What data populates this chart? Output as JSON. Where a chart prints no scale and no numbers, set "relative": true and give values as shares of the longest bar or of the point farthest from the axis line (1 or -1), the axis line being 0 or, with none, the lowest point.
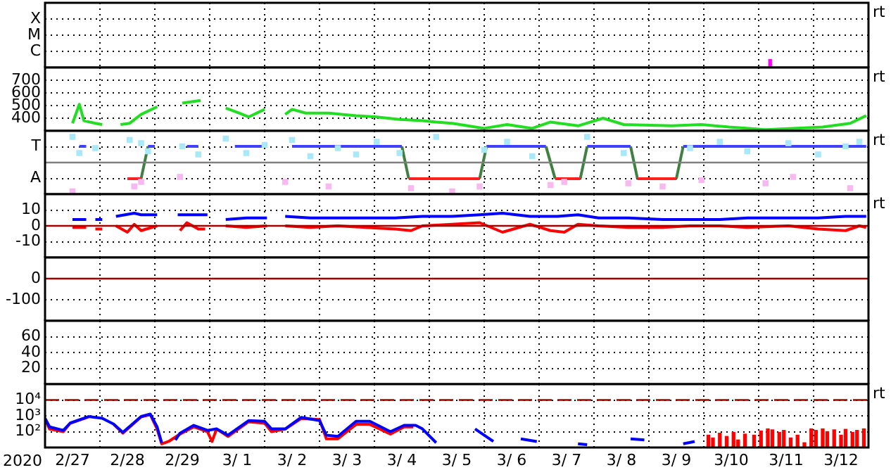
{
  "chart_data": [
    {
      "type": "bar",
      "relative": true,
      "y_categories": [
        "X",
        "M",
        "C"
      ],
      "xlim": [
        "2020-02-27T00:00",
        "2020-03-13T00:00"
      ],
      "xticks": [
        {
          "value": "2020-02-28T00:00",
          "label": null
        },
        {
          "value": "2020-02-29T00:00",
          "label": null
        },
        {
          "value": "2020-03-01T00:00",
          "label": null
        },
        {
          "value": "2020-03-02T00:00",
          "label": null
        },
        {
          "value": "2020-03-03T00:00",
          "label": null
        },
        {
          "value": "2020-03-04T00:00",
          "label": null
        },
        {
          "value": "2020-03-05T00:00",
          "label": null
        },
        {
          "value": "2020-03-06T00:00",
          "label": null
        },
        {
          "value": "2020-03-07T00:00",
          "label": null
        },
        {
          "value": "2020-03-08T00:00",
          "label": null
        },
        {
          "value": "2020-03-09T00:00",
          "label": null
        },
        {
          "value": "2020-03-10T00:00",
          "label": null
        },
        {
          "value": "2020-03-11T00:00",
          "label": null
        },
        {
          "value": "2020-03-12T00:00",
          "label": null
        }
      ],
      "grid": true,
      "tick_labels": "y",
      "annotations": [
        "rt"
      ],
      "series": [
        {
          "color": "#ff00ff",
          "x": [
            "2020-03-11T05:00"
          ],
          "values": [
            1
          ]
        }
      ]
    },
    {
      "type": "line",
      "ylim": [
        300,
        800
      ],
      "yticks": [
        400,
        500,
        600,
        700
      ],
      "xlim": [
        "2020-02-27T00:00",
        "2020-03-13T00:00"
      ],
      "xticks": [
        {
          "value": "2020-02-28T00:00",
          "label": null
        },
        {
          "value": "2020-02-29T00:00",
          "label": null
        },
        {
          "value": "2020-03-01T00:00",
          "label": null
        },
        {
          "value": "2020-03-02T00:00",
          "label": null
        },
        {
          "value": "2020-03-03T00:00",
          "label": null
        },
        {
          "value": "2020-03-04T00:00",
          "label": null
        },
        {
          "value": "2020-03-05T00:00",
          "label": null
        },
        {
          "value": "2020-03-06T00:00",
          "label": null
        },
        {
          "value": "2020-03-07T00:00",
          "label": null
        },
        {
          "value": "2020-03-08T00:00",
          "label": null
        },
        {
          "value": "2020-03-09T00:00",
          "label": null
        },
        {
          "value": "2020-03-10T00:00",
          "label": null
        },
        {
          "value": "2020-03-11T00:00",
          "label": null
        },
        {
          "value": "2020-03-12T00:00",
          "label": null
        }
      ],
      "grid": true,
      "tick_labels": "y",
      "annotations": [
        "rt"
      ],
      "series": [
        {
          "color": "#22dd22",
          "x": [
            "2020-02-27T12:00",
            "2020-02-27T15:00",
            "2020-02-27T17:00",
            "2020-02-27T22:00",
            "2020-02-28T01:00",
            "2020-02-28T05:00",
            "2020-02-28T09:00",
            "2020-02-28T13:00",
            "2020-02-28T18:00",
            "2020-02-29T01:00",
            "2020-02-29T06:00",
            "2020-02-29T12:00",
            "2020-02-29T20:00",
            "2020-03-01T02:00",
            "2020-03-01T07:00",
            "2020-03-01T13:00",
            "2020-03-01T17:00",
            "2020-03-02T00:00",
            "2020-03-02T04:00",
            "2020-03-02T09:00",
            "2020-03-02T12:00",
            "2020-03-02T18:00",
            "2020-03-03T04:00",
            "2020-03-03T16:00",
            "2020-03-04T01:00",
            "2020-03-04T11:00",
            "2020-03-04T21:00",
            "2020-03-05T03:00",
            "2020-03-05T10:00",
            "2020-03-06T00:00",
            "2020-03-06T10:00",
            "2020-03-06T21:00",
            "2020-03-07T05:00",
            "2020-03-07T17:00",
            "2020-03-08T04:00",
            "2020-03-08T13:00",
            "2020-03-09T10:00",
            "2020-03-09T23:00",
            "2020-03-10T11:00",
            "2020-03-11T03:00",
            "2020-03-11T15:00",
            "2020-03-12T04:00",
            "2020-03-12T16:00",
            "2020-03-12T23:00"
          ],
          "values": [
            360,
            510,
            380,
            360,
            350,
            null,
            350,
            360,
            430,
            490,
            null,
            520,
            540,
            null,
            480,
            440,
            410,
            470,
            null,
            430,
            470,
            440,
            440,
            420,
            410,
            390,
            380,
            370,
            360,
            320,
            350,
            320,
            370,
            340,
            400,
            350,
            340,
            350,
            330,
            310,
            320,
            330,
            360,
            420
          ]
        }
      ]
    },
    {
      "type": "line",
      "relative": true,
      "y_categories": [
        "T",
        "A"
      ],
      "xlim": [
        "2020-02-27T00:00",
        "2020-03-13T00:00"
      ],
      "xticks": [
        {
          "value": "2020-02-28T00:00",
          "label": null
        },
        {
          "value": "2020-02-29T00:00",
          "label": null
        },
        {
          "value": "2020-03-01T00:00",
          "label": null
        },
        {
          "value": "2020-03-02T00:00",
          "label": null
        },
        {
          "value": "2020-03-03T00:00",
          "label": null
        },
        {
          "value": "2020-03-04T00:00",
          "label": null
        },
        {
          "value": "2020-03-05T00:00",
          "label": null
        },
        {
          "value": "2020-03-06T00:00",
          "label": null
        },
        {
          "value": "2020-03-07T00:00",
          "label": null
        },
        {
          "value": "2020-03-08T00:00",
          "label": null
        },
        {
          "value": "2020-03-09T00:00",
          "label": null
        },
        {
          "value": "2020-03-10T00:00",
          "label": null
        },
        {
          "value": "2020-03-11T00:00",
          "label": null
        },
        {
          "value": "2020-03-12T00:00",
          "label": null
        }
      ],
      "grid": true,
      "tick_labels": "y",
      "annotations": [
        "rt"
      ],
      "ref_lines": [
        {
          "axis": "y",
          "value": 0,
          "color": "#808080"
        }
      ],
      "series": [
        {
          "type": "scatter",
          "marker": "square",
          "color": "#a8e8f8",
          "x": [
            "2020-02-27T12:00",
            "2020-02-27T15:00",
            "2020-02-27T22:00",
            "2020-02-28T13:00",
            "2020-02-28T18:00",
            "2020-02-28T21:00",
            "2020-02-29T12:00",
            "2020-02-29T19:00",
            "2020-03-01T07:00",
            "2020-03-01T16:00",
            "2020-03-02T00:00",
            "2020-03-02T12:00",
            "2020-03-02T20:00",
            "2020-03-03T08:00",
            "2020-03-03T16:00",
            "2020-03-04T01:00",
            "2020-03-04T11:00",
            "2020-03-05T03:00",
            "2020-03-06T00:00",
            "2020-03-06T10:00",
            "2020-03-06T21:00",
            "2020-03-07T21:00",
            "2020-03-08T13:00",
            "2020-03-09T18:00",
            "2020-03-10T07:00",
            "2020-03-10T19:00",
            "2020-03-11T13:00",
            "2020-03-12T02:00",
            "2020-03-12T14:00",
            "2020-03-12T20:00"
          ],
          "values": [
            0.89,
            0.33,
            0.5,
            0.78,
            0.67,
            0.39,
            0.56,
            0.28,
            0.83,
            0.33,
            0.61,
            0.78,
            0.22,
            0.5,
            0.28,
            0.72,
            0.33,
            0.89,
            0.44,
            0.72,
            0.22,
            0.89,
            0.33,
            0.5,
            0.72,
            0.39,
            0.67,
            0.28,
            0.56,
            0.72
          ]
        },
        {
          "type": "scatter",
          "marker": "square",
          "color": "#f8b8f0",
          "x": [
            "2020-02-27T12:00",
            "2020-02-28T15:00",
            "2020-02-28T18:00",
            "2020-02-29T11:00",
            "2020-03-02T09:00",
            "2020-03-03T04:00",
            "2020-03-04T16:00",
            "2020-03-05T10:00",
            "2020-03-05T22:00",
            "2020-03-07T05:00",
            "2020-03-07T11:00",
            "2020-03-08T15:00",
            "2020-03-09T06:00",
            "2020-03-09T23:00",
            "2020-03-11T03:00",
            "2020-03-11T15:00",
            "2020-03-12T16:00"
          ],
          "values": [
            -1,
            -0.83,
            -0.67,
            -0.5,
            -0.67,
            -0.83,
            -0.89,
            -1,
            -0.83,
            -0.78,
            -0.67,
            -0.72,
            -0.83,
            -0.61,
            -0.72,
            -0.5,
            -0.89
          ]
        },
        {
          "color": "#4040ff",
          "x": [
            "2020-02-27T15:00",
            "2020-02-27T18:00",
            "2020-02-28T00:00",
            "2020-02-28T21:00",
            "2020-02-29T00:00",
            "2020-02-29T06:00",
            "2020-02-29T14:00",
            "2020-02-29T19:00",
            "2020-03-01T02:00",
            "2020-03-01T11:00",
            "2020-03-02T00:00",
            "2020-03-02T06:00",
            "2020-03-02T12:00",
            "2020-03-04T12:00",
            "2020-03-05T00:00",
            "2020-03-06T01:00",
            "2020-03-07T03:00",
            "2020-03-07T12:00",
            "2020-03-07T21:00",
            "2020-03-08T16:00",
            "2020-03-09T00:00",
            "2020-03-09T15:00",
            "2020-03-12T23:00"
          ],
          "values": [
            0.56,
            0.56,
            null,
            0.56,
            0.56,
            null,
            0.56,
            0.56,
            null,
            0.56,
            0.56,
            null,
            0.56,
            0.56,
            null,
            0.56,
            0.56,
            null,
            0.56,
            0.56,
            null,
            0.56,
            0.56
          ]
        },
        {
          "color": "#ff2020",
          "x": [
            "2020-02-28T12:00",
            "2020-02-28T18:00",
            "2020-03-01T00:00",
            "2020-03-04T15:00",
            "2020-03-05T22:00",
            "2020-03-06T12:00",
            "2020-03-07T07:00",
            "2020-03-07T18:00",
            "2020-03-08T00:00",
            "2020-03-08T19:00",
            "2020-03-09T12:00"
          ],
          "values": [
            -0.56,
            -0.56,
            null,
            -0.56,
            -0.56,
            null,
            -0.56,
            -0.56,
            null,
            -0.56,
            -0.56
          ]
        },
        {
          "color": "#408040",
          "x": [
            "2020-02-28T18:00",
            "2020-02-28T21:00",
            "2020-03-01T00:00",
            "2020-03-04T12:00",
            "2020-03-04T15:00",
            "2020-03-05T00:00",
            "2020-03-05T22:00",
            "2020-03-06T01:00",
            "2020-03-06T12:00",
            "2020-03-07T03:00",
            "2020-03-07T07:00",
            "2020-03-07T12:00",
            "2020-03-07T18:00",
            "2020-03-07T21:00",
            "2020-03-08T00:00",
            "2020-03-08T16:00",
            "2020-03-08T19:00",
            "2020-03-09T00:00",
            "2020-03-09T12:00",
            "2020-03-09T15:00"
          ],
          "values": [
            -0.56,
            0.56,
            null,
            0.56,
            -0.56,
            null,
            -0.56,
            0.56,
            null,
            0.56,
            -0.56,
            null,
            -0.56,
            0.56,
            null,
            0.56,
            -0.56,
            null,
            -0.56,
            0.56
          ]
        }
      ]
    },
    {
      "type": "line",
      "ylim": [
        -20,
        20
      ],
      "yticks": [
        -10,
        0,
        10
      ],
      "xlim": [
        "2020-02-27T00:00",
        "2020-03-13T00:00"
      ],
      "xticks": [
        {
          "value": "2020-02-28T00:00",
          "label": null
        },
        {
          "value": "2020-02-29T00:00",
          "label": null
        },
        {
          "value": "2020-03-01T00:00",
          "label": null
        },
        {
          "value": "2020-03-02T00:00",
          "label": null
        },
        {
          "value": "2020-03-03T00:00",
          "label": null
        },
        {
          "value": "2020-03-04T00:00",
          "label": null
        },
        {
          "value": "2020-03-05T00:00",
          "label": null
        },
        {
          "value": "2020-03-06T00:00",
          "label": null
        },
        {
          "value": "2020-03-07T00:00",
          "label": null
        },
        {
          "value": "2020-03-08T00:00",
          "label": null
        },
        {
          "value": "2020-03-09T00:00",
          "label": null
        },
        {
          "value": "2020-03-10T00:00",
          "label": null
        },
        {
          "value": "2020-03-11T00:00",
          "label": null
        },
        {
          "value": "2020-03-12T00:00",
          "label": null
        }
      ],
      "grid": true,
      "tick_labels": "y",
      "annotations": [
        "rt"
      ],
      "ref_lines": [
        {
          "axis": "y",
          "value": 0,
          "color": "#a00000"
        }
      ],
      "series": [
        {
          "color": "#0000ff",
          "x": [
            "2020-02-27T12:00",
            "2020-02-27T18:00",
            "2020-02-27T20:00",
            "2020-02-27T22:00",
            "2020-02-28T01:00",
            "2020-02-28T04:00",
            "2020-02-28T07:00",
            "2020-02-28T15:00",
            "2020-02-28T18:00",
            "2020-02-29T01:00",
            "2020-02-29T06:00",
            "2020-02-29T10:00",
            "2020-02-29T16:00",
            "2020-02-29T23:00",
            "2020-03-01T02:00",
            "2020-03-01T07:00",
            "2020-03-01T16:00",
            "2020-03-02T01:00",
            "2020-03-02T05:00",
            "2020-03-02T09:00",
            "2020-03-02T20:00",
            "2020-03-03T08:00",
            "2020-03-03T20:00",
            "2020-03-04T09:00",
            "2020-03-04T21:00",
            "2020-03-05T10:00",
            "2020-03-05T22:00",
            "2020-03-06T08:00",
            "2020-03-06T20:00",
            "2020-03-07T08:00",
            "2020-03-07T17:00",
            "2020-03-08T02:00",
            "2020-03-08T15:00",
            "2020-03-09T06:00",
            "2020-03-09T18:00",
            "2020-03-10T07:00",
            "2020-03-10T19:00",
            "2020-03-11T13:00",
            "2020-03-12T02:00",
            "2020-03-12T14:00",
            "2020-03-12T23:00"
          ],
          "values": [
            4,
            4,
            null,
            4,
            4,
            null,
            6,
            8,
            7,
            7,
            null,
            7,
            7,
            7,
            null,
            4,
            5,
            5,
            null,
            6,
            5,
            5,
            5,
            5,
            6,
            6,
            7,
            8,
            6,
            6,
            7,
            5,
            5,
            4,
            4,
            4,
            5,
            5,
            5,
            6,
            6
          ]
        },
        {
          "color": "#ff0000",
          "x": [
            "2020-02-27T12:00",
            "2020-02-27T18:00",
            "2020-02-27T20:00",
            "2020-02-27T22:00",
            "2020-02-28T01:00",
            "2020-02-28T04:00",
            "2020-02-28T07:00",
            "2020-02-28T12:00",
            "2020-02-28T15:00",
            "2020-02-28T18:00",
            "2020-02-29T01:00",
            "2020-02-29T06:00",
            "2020-02-29T11:00",
            "2020-02-29T14:00",
            "2020-02-29T19:00",
            "2020-02-29T22:00",
            "2020-03-01T02:00",
            "2020-03-01T07:00",
            "2020-03-01T16:00",
            "2020-03-02T01:00",
            "2020-03-02T05:00",
            "2020-03-02T09:00",
            "2020-03-02T20:00",
            "2020-03-03T08:00",
            "2020-03-03T20:00",
            "2020-03-04T09:00",
            "2020-03-04T16:00",
            "2020-03-04T21:00",
            "2020-03-05T10:00",
            "2020-03-05T22:00",
            "2020-03-06T08:00",
            "2020-03-06T20:00",
            "2020-03-07T05:00",
            "2020-03-07T11:00",
            "2020-03-07T17:00",
            "2020-03-08T02:00",
            "2020-03-08T15:00",
            "2020-03-09T06:00",
            "2020-03-09T18:00",
            "2020-03-10T07:00",
            "2020-03-10T19:00",
            "2020-03-11T13:00",
            "2020-03-12T02:00",
            "2020-03-12T14:00",
            "2020-03-12T20:00",
            "2020-03-12T23:00"
          ],
          "values": [
            -1,
            -1,
            null,
            -2,
            -2,
            null,
            0,
            -4,
            1,
            -3,
            0,
            null,
            -3,
            2,
            -2,
            -2,
            null,
            0,
            -1,
            0,
            null,
            0,
            -1,
            0,
            -1,
            -2,
            -3,
            0,
            1,
            2,
            -4,
            1,
            -3,
            -4,
            1,
            0,
            -1,
            -1,
            0,
            0,
            -1,
            0,
            -2,
            -3,
            0,
            -1
          ]
        }
      ]
    },
    {
      "type": "line",
      "ylim": [
        -200,
        100
      ],
      "yticks": [
        -100,
        0
      ],
      "xlim": [
        "2020-02-27T00:00",
        "2020-03-13T00:00"
      ],
      "xticks": [
        {
          "value": "2020-02-28T00:00",
          "label": null
        },
        {
          "value": "2020-02-29T00:00",
          "label": null
        },
        {
          "value": "2020-03-01T00:00",
          "label": null
        },
        {
          "value": "2020-03-02T00:00",
          "label": null
        },
        {
          "value": "2020-03-03T00:00",
          "label": null
        },
        {
          "value": "2020-03-04T00:00",
          "label": null
        },
        {
          "value": "2020-03-05T00:00",
          "label": null
        },
        {
          "value": "2020-03-06T00:00",
          "label": null
        },
        {
          "value": "2020-03-07T00:00",
          "label": null
        },
        {
          "value": "2020-03-08T00:00",
          "label": null
        },
        {
          "value": "2020-03-09T00:00",
          "label": null
        },
        {
          "value": "2020-03-10T00:00",
          "label": null
        },
        {
          "value": "2020-03-11T00:00",
          "label": null
        },
        {
          "value": "2020-03-12T00:00",
          "label": null
        }
      ],
      "grid": true,
      "tick_labels": "y",
      "ref_lines": [
        {
          "axis": "y",
          "value": 0,
          "color": "#a00000"
        }
      ]
    },
    {
      "type": "line",
      "ylim": [
        0,
        80
      ],
      "yticks": [
        20,
        40,
        60
      ],
      "xlim": [
        "2020-02-27T00:00",
        "2020-03-13T00:00"
      ],
      "xticks": [
        {
          "value": "2020-02-28T00:00",
          "label": null
        },
        {
          "value": "2020-02-29T00:00",
          "label": null
        },
        {
          "value": "2020-03-01T00:00",
          "label": null
        },
        {
          "value": "2020-03-02T00:00",
          "label": null
        },
        {
          "value": "2020-03-03T00:00",
          "label": null
        },
        {
          "value": "2020-03-04T00:00",
          "label": null
        },
        {
          "value": "2020-03-05T00:00",
          "label": null
        },
        {
          "value": "2020-03-06T00:00",
          "label": null
        },
        {
          "value": "2020-03-07T00:00",
          "label": null
        },
        {
          "value": "2020-03-08T00:00",
          "label": null
        },
        {
          "value": "2020-03-09T00:00",
          "label": null
        },
        {
          "value": "2020-03-10T00:00",
          "label": null
        },
        {
          "value": "2020-03-11T00:00",
          "label": null
        },
        {
          "value": "2020-03-12T00:00",
          "label": null
        }
      ],
      "grid": true,
      "tick_labels": "y"
    },
    {
      "type": "line",
      "log": "y",
      "ylim": [
        10,
        100000
      ],
      "yticks": [
        {
          "value": 100,
          "label": "10²"
        },
        {
          "value": 1000,
          "label": "10³"
        },
        {
          "value": 10000,
          "label": "10⁴"
        }
      ],
      "xlabel": "2020",
      "xlim": [
        "2020-02-27T00:00",
        "2020-03-13T00:00"
      ],
      "xticks": [
        {
          "value": "2020-02-27T12:00",
          "label": "2/27"
        },
        {
          "value": "2020-02-28T00:00",
          "label": null
        },
        {
          "value": "2020-02-28T12:00",
          "label": "2/28"
        },
        {
          "value": "2020-02-29T00:00",
          "label": null
        },
        {
          "value": "2020-02-29T12:00",
          "label": "2/29"
        },
        {
          "value": "2020-03-01T00:00",
          "label": null
        },
        {
          "value": "2020-03-01T12:00",
          "label": "3/ 1"
        },
        {
          "value": "2020-03-02T00:00",
          "label": null
        },
        {
          "value": "2020-03-02T12:00",
          "label": "3/ 2"
        },
        {
          "value": "2020-03-03T00:00",
          "label": null
        },
        {
          "value": "2020-03-03T12:00",
          "label": "3/ 3"
        },
        {
          "value": "2020-03-04T00:00",
          "label": null
        },
        {
          "value": "2020-03-04T12:00",
          "label": "3/ 4"
        },
        {
          "value": "2020-03-05T00:00",
          "label": null
        },
        {
          "value": "2020-03-05T12:00",
          "label": "3/ 5"
        },
        {
          "value": "2020-03-06T00:00",
          "label": null
        },
        {
          "value": "2020-03-06T12:00",
          "label": "3/ 6"
        },
        {
          "value": "2020-03-07T00:00",
          "label": null
        },
        {
          "value": "2020-03-07T12:00",
          "label": "3/ 7"
        },
        {
          "value": "2020-03-08T00:00",
          "label": null
        },
        {
          "value": "2020-03-08T12:00",
          "label": "3/ 8"
        },
        {
          "value": "2020-03-09T00:00",
          "label": null
        },
        {
          "value": "2020-03-09T12:00",
          "label": "3/ 9"
        },
        {
          "value": "2020-03-10T00:00",
          "label": null
        },
        {
          "value": "2020-03-10T12:00",
          "label": "3/10"
        },
        {
          "value": "2020-03-11T00:00",
          "label": null
        },
        {
          "value": "2020-03-11T12:00",
          "label": "3/11"
        },
        {
          "value": "2020-03-12T00:00",
          "label": null
        },
        {
          "value": "2020-03-12T12:00",
          "label": "3/12"
        }
      ],
      "grid": true,
      "annotations": [
        "rt"
      ],
      "ref_lines": [
        {
          "axis": "y",
          "value": 10000,
          "color": "#a00000",
          "line_style": "dashed"
        }
      ],
      "series": [
        {
          "type": "bar",
          "color": "#ff0000",
          "x": [
            "2020-03-10T02:00",
            "2020-03-10T04:00",
            "2020-03-10T07:00",
            "2020-03-10T10:00",
            "2020-03-10T13:00",
            "2020-03-10T15:00",
            "2020-03-10T18:00",
            "2020-03-10T22:00",
            "2020-03-11T01:00",
            "2020-03-11T04:00",
            "2020-03-11T06:00",
            "2020-03-11T09:00",
            "2020-03-11T11:00",
            "2020-03-11T14:00",
            "2020-03-11T17:00",
            "2020-03-11T20:00",
            "2020-03-11T23:00",
            "2020-03-12T01:00",
            "2020-03-12T04:00",
            "2020-03-12T06:00",
            "2020-03-12T09:00",
            "2020-03-12T12:00",
            "2020-03-12T14:00",
            "2020-03-12T17:00",
            "2020-03-12T19:00",
            "2020-03-12T22:00"
          ],
          "values": [
            60,
            40,
            80,
            50,
            90,
            30,
            70,
            60,
            110,
            150,
            130,
            90,
            120,
            40,
            60,
            20,
            150,
            120,
            150,
            100,
            130,
            60,
            140,
            90,
            120,
            150
          ]
        },
        {
          "color": "#0000ff",
          "x": [
            "2020-02-27T00:00",
            "2020-02-27T02:00",
            "2020-02-27T08:00",
            "2020-02-27T11:00",
            "2020-02-27T19:00",
            "2020-02-28T01:00",
            "2020-02-28T06:00",
            "2020-02-28T10:00",
            "2020-02-28T18:00",
            "2020-02-28T22:00",
            "2020-02-29T01:00",
            "2020-02-29T03:00",
            "2020-02-29T06:00",
            "2020-02-29T09:00",
            "2020-02-29T11:00",
            "2020-02-29T17:00",
            "2020-02-29T23:00",
            "2020-03-01T03:00",
            "2020-03-01T08:00",
            "2020-03-01T17:00",
            "2020-03-02T00:00",
            "2020-03-02T03:00",
            "2020-03-02T09:00",
            "2020-03-02T16:00",
            "2020-03-03T00:00",
            "2020-03-03T03:00",
            "2020-03-03T08:00",
            "2020-03-03T16:00",
            "2020-03-03T22:00",
            "2020-03-04T07:00",
            "2020-03-04T13:00",
            "2020-03-04T18:00",
            "2020-03-04T21:00",
            "2020-03-05T03:00",
            "2020-03-05T07:00",
            "2020-03-05T10:00",
            "2020-03-05T20:00",
            "2020-03-06T04:00",
            "2020-03-06T09:00",
            "2020-03-06T11:00",
            "2020-03-06T16:00",
            "2020-03-06T23:00",
            "2020-03-07T04:00",
            "2020-03-07T11:00",
            "2020-03-07T17:00",
            "2020-03-07T21:00",
            "2020-03-08T02:00",
            "2020-03-08T12:00",
            "2020-03-08T16:00",
            "2020-03-08T22:00",
            "2020-03-09T03:00",
            "2020-03-09T12:00",
            "2020-03-09T15:00",
            "2020-03-09T20:00"
          ],
          "values": [
            700,
            200,
            120,
            350,
            900,
            700,
            300,
            90,
            900,
            1300,
            200,
            20,
            null,
            30,
            80,
            250,
            120,
            150,
            60,
            500,
            450,
            150,
            150,
            800,
            500,
            60,
            50,
            450,
            450,
            100,
            250,
            250,
            150,
            20,
            null,
            null,
            150,
            24,
            null,
            null,
            35,
            24,
            null,
            null,
            17,
            15,
            null,
            null,
            35,
            30,
            null,
            null,
            17,
            24
          ]
        },
        {
          "color": "#ff0000",
          "x": [
            "2020-02-27T00:00",
            "2020-02-27T02:00",
            "2020-02-27T08:00",
            "2020-02-27T11:00",
            "2020-02-27T19:00",
            "2020-02-28T01:00",
            "2020-02-28T06:00",
            "2020-02-28T10:00",
            "2020-02-28T18:00",
            "2020-02-28T22:00",
            "2020-02-29T01:00",
            "2020-02-29T03:00",
            "2020-02-29T06:00",
            "2020-02-29T11:00",
            "2020-02-29T17:00",
            "2020-02-29T23:00",
            "2020-03-01T01:00",
            "2020-03-01T03:00",
            "2020-03-01T08:00",
            "2020-03-01T17:00",
            "2020-03-02T00:00",
            "2020-03-02T03:00",
            "2020-03-02T09:00",
            "2020-03-02T16:00",
            "2020-03-03T00:00",
            "2020-03-03T03:00",
            "2020-03-03T08:00",
            "2020-03-03T16:00",
            "2020-03-03T22:00",
            "2020-03-04T07:00",
            "2020-03-04T13:00",
            "2020-03-04T17:00"
          ],
          "values": [
            590,
            145,
            100,
            340,
            850,
            null,
            290,
            80,
            850,
            1200,
            145,
            17,
            24,
            70,
            200,
            100,
            24,
            145,
            50,
            420,
            340,
            100,
            145,
            680,
            590,
            35,
            35,
            290,
            290,
            70,
            200,
            200
          ]
        }
      ]
    }
  ]
}
